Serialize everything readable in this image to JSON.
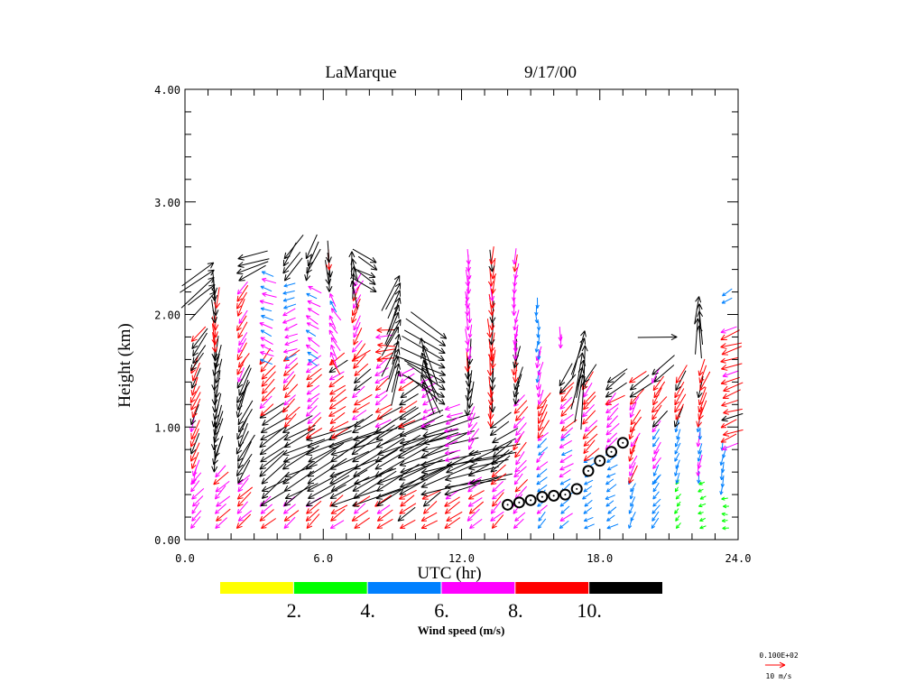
{
  "chart_data": {
    "type": "vector-profile",
    "title": "LaMarque",
    "date": "9/17/00",
    "xlabel": "UTC (hr)",
    "ylabel": "Height (km)",
    "xlim": [
      0,
      24
    ],
    "ylim": [
      0,
      4
    ],
    "x_ticks": [
      "0.0",
      "6.0",
      "12.0",
      "18.0",
      "24.0"
    ],
    "x_tick_values": [
      0,
      6,
      12,
      18,
      24
    ],
    "y_ticks": [
      "0.00",
      "1.00",
      "2.00",
      "3.00",
      "4.00"
    ],
    "y_tick_values": [
      0,
      1,
      2,
      3,
      4
    ],
    "colorbar": {
      "label": "Wind speed (m/s)",
      "tick_labels": [
        "2.",
        "4.",
        "6.",
        "8.",
        "10."
      ],
      "bins": [
        0,
        2,
        4,
        6,
        8,
        10
      ],
      "colors": [
        "#ffff00",
        "#00ff00",
        "#0080ff",
        "#ff00ff",
        "#ff0000",
        "#000000"
      ]
    },
    "reference_vector": {
      "label_value": "0.100E+02",
      "label_unit": "10 m/s",
      "speed": 10,
      "color": "#ff0000"
    },
    "level_spacing_km": 0.065,
    "profiles_note": "layers: [from_km, to_km, speed_m_s, arrow_direction_deg_math]",
    "profiles": [
      {
        "t": 0.3,
        "layers": [
          [
            0.1,
            0.5,
            7,
            230
          ],
          [
            0.5,
            1.5,
            9,
            250
          ],
          [
            1.5,
            1.8,
            11,
            230
          ]
        ]
      },
      {
        "t": 1.3,
        "layers": [
          [
            0.1,
            0.6,
            8,
            225
          ],
          [
            0.6,
            1.0,
            12,
            260
          ],
          [
            1.0,
            1.6,
            12,
            265
          ],
          [
            1.6,
            2.2,
            10,
            270
          ],
          [
            2.2,
            2.5,
            18,
            40
          ]
        ]
      },
      {
        "t": 2.3,
        "layers": [
          [
            0.1,
            0.5,
            8,
            225
          ],
          [
            0.5,
            1.4,
            13,
            245
          ],
          [
            1.4,
            2.2,
            8,
            240
          ],
          [
            2.3,
            2.5,
            15,
            200
          ]
        ]
      },
      {
        "t": 3.3,
        "layers": [
          [
            0.1,
            0.3,
            8,
            220
          ],
          [
            0.3,
            1.1,
            15,
            215
          ],
          [
            1.1,
            1.6,
            9,
            230
          ],
          [
            1.6,
            2.4,
            6,
            160
          ]
        ]
      },
      {
        "t": 4.3,
        "layers": [
          [
            0.1,
            0.3,
            8,
            220
          ],
          [
            0.3,
            1.0,
            18,
            210
          ],
          [
            1.0,
            1.6,
            8,
            225
          ],
          [
            1.6,
            2.3,
            6,
            200
          ],
          [
            2.3,
            2.5,
            14,
            240
          ]
        ]
      },
      {
        "t": 5.3,
        "layers": [
          [
            0.1,
            0.3,
            8,
            220
          ],
          [
            0.3,
            0.9,
            20,
            205
          ],
          [
            0.9,
            1.6,
            8,
            220
          ],
          [
            1.6,
            2.3,
            6,
            150
          ],
          [
            2.3,
            2.5,
            12,
            250
          ]
        ]
      },
      {
        "t": 6.3,
        "layers": [
          [
            0.1,
            0.3,
            8,
            215
          ],
          [
            0.3,
            0.9,
            22,
            205
          ],
          [
            0.9,
            1.6,
            9,
            215
          ],
          [
            1.6,
            2.2,
            7,
            120
          ],
          [
            2.2,
            2.5,
            11,
            270
          ]
        ]
      },
      {
        "t": 7.3,
        "layers": [
          [
            0.1,
            0.3,
            8,
            215
          ],
          [
            0.3,
            1.0,
            24,
            205
          ],
          [
            1.0,
            1.6,
            9,
            220
          ],
          [
            1.6,
            2.3,
            8,
            240
          ],
          [
            2.3,
            2.6,
            12,
            95
          ]
        ]
      },
      {
        "t": 8.3,
        "layers": [
          [
            0.1,
            0.3,
            8,
            215
          ],
          [
            0.3,
            1.0,
            25,
            205
          ],
          [
            1.0,
            1.6,
            8,
            215
          ],
          [
            1.6,
            1.9,
            8,
            180
          ],
          [
            2.2,
            2.5,
            12,
            -30
          ]
        ]
      },
      {
        "t": 9.3,
        "layers": [
          [
            0.1,
            0.4,
            9,
            215
          ],
          [
            0.4,
            1.0,
            26,
            200
          ],
          [
            1.0,
            1.5,
            9,
            210
          ],
          [
            1.5,
            2.4,
            16,
            70
          ]
        ]
      },
      {
        "t": 10.3,
        "layers": [
          [
            0.1,
            0.4,
            9,
            215
          ],
          [
            0.4,
            1.0,
            26,
            200
          ],
          [
            1.0,
            1.4,
            7,
            210
          ],
          [
            1.4,
            1.8,
            18,
            110
          ]
        ]
      },
      {
        "t": 11.3,
        "layers": [
          [
            0.1,
            0.4,
            9,
            215
          ],
          [
            0.4,
            0.7,
            26,
            195
          ],
          [
            0.7,
            1.2,
            7,
            200
          ],
          [
            1.2,
            1.8,
            22,
            -30
          ]
        ]
      },
      {
        "t": 12.3,
        "layers": [
          [
            0.1,
            0.5,
            8,
            215
          ],
          [
            0.5,
            0.8,
            22,
            200
          ],
          [
            0.8,
            1.1,
            7,
            240
          ],
          [
            1.1,
            1.6,
            11,
            270
          ],
          [
            1.6,
            2.5,
            7,
            270
          ]
        ]
      },
      {
        "t": 13.3,
        "layers": [
          [
            0.1,
            0.6,
            8,
            225
          ],
          [
            0.6,
            1.0,
            12,
            215
          ],
          [
            1.0,
            1.6,
            10,
            270
          ],
          [
            1.6,
            2.5,
            9,
            270
          ]
        ]
      },
      {
        "t": 14.3,
        "layers": [
          [
            0.1,
            0.6,
            7,
            225
          ],
          [
            0.6,
            1.2,
            8,
            235
          ],
          [
            1.2,
            1.6,
            10,
            260
          ],
          [
            1.6,
            2.5,
            7,
            265
          ]
        ]
      },
      {
        "t": 15.3,
        "layers": [
          [
            0.1,
            0.9,
            6,
            225
          ],
          [
            0.9,
            1.2,
            9,
            240
          ],
          [
            1.2,
            1.6,
            7,
            260
          ],
          [
            1.6,
            2.1,
            5,
            270
          ]
        ]
      },
      {
        "t": 16.3,
        "layers": [
          [
            0.1,
            0.9,
            6,
            215
          ],
          [
            0.9,
            1.3,
            8,
            225
          ],
          [
            1.3,
            1.4,
            11,
            240
          ],
          [
            1.7,
            1.8,
            6,
            270
          ]
        ]
      },
      {
        "t": 17.3,
        "layers": [
          [
            0.1,
            0.7,
            5,
            210
          ],
          [
            0.7,
            1.2,
            8,
            225
          ],
          [
            1.2,
            1.4,
            9,
            230
          ],
          [
            1.4,
            1.9,
            20,
            80
          ]
        ]
      },
      {
        "t": 18.3,
        "layers": [
          [
            0.1,
            0.8,
            5,
            210
          ],
          [
            0.8,
            1.2,
            7,
            225
          ],
          [
            1.2,
            1.4,
            11,
            215
          ]
        ]
      },
      {
        "t": 19.3,
        "layers": [
          [
            0.1,
            0.5,
            5,
            245
          ],
          [
            0.5,
            1.2,
            8,
            240
          ],
          [
            1.2,
            1.4,
            11,
            220
          ]
        ]
      },
      {
        "t": 20.3,
        "layers": [
          [
            0.1,
            0.5,
            5,
            230
          ],
          [
            0.5,
            1.0,
            6,
            240
          ],
          [
            1.0,
            1.4,
            9,
            235
          ],
          [
            1.4,
            1.5,
            12,
            220
          ]
        ]
      },
      {
        "t": 21.3,
        "layers": [
          [
            0.1,
            0.5,
            3,
            230
          ],
          [
            0.5,
            1.0,
            5,
            250
          ],
          [
            1.0,
            1.4,
            9,
            240
          ],
          [
            1.8,
            1.8,
            20,
            5
          ]
        ]
      },
      {
        "t": 22.3,
        "layers": [
          [
            0.1,
            0.5,
            3,
            200
          ],
          [
            0.5,
            1.0,
            6,
            260
          ],
          [
            1.0,
            1.5,
            9,
            250
          ],
          [
            1.9,
            2.2,
            15,
            90
          ]
        ]
      },
      {
        "t": 23.3,
        "layers": [
          [
            0.1,
            0.4,
            3,
            180
          ],
          [
            0.4,
            0.8,
            5,
            260
          ],
          [
            0.8,
            1.9,
            9,
            200
          ],
          [
            2.1,
            2.2,
            6,
            210
          ]
        ]
      }
    ],
    "mixing_height_markers": {
      "x": [
        14.0,
        14.5,
        15.0,
        15.5,
        16.0,
        16.5,
        17.0,
        17.5,
        18.0,
        18.5,
        19.0
      ],
      "y": [
        0.31,
        0.33,
        0.35,
        0.38,
        0.39,
        0.4,
        0.45,
        0.61,
        0.7,
        0.78,
        0.86
      ]
    }
  }
}
